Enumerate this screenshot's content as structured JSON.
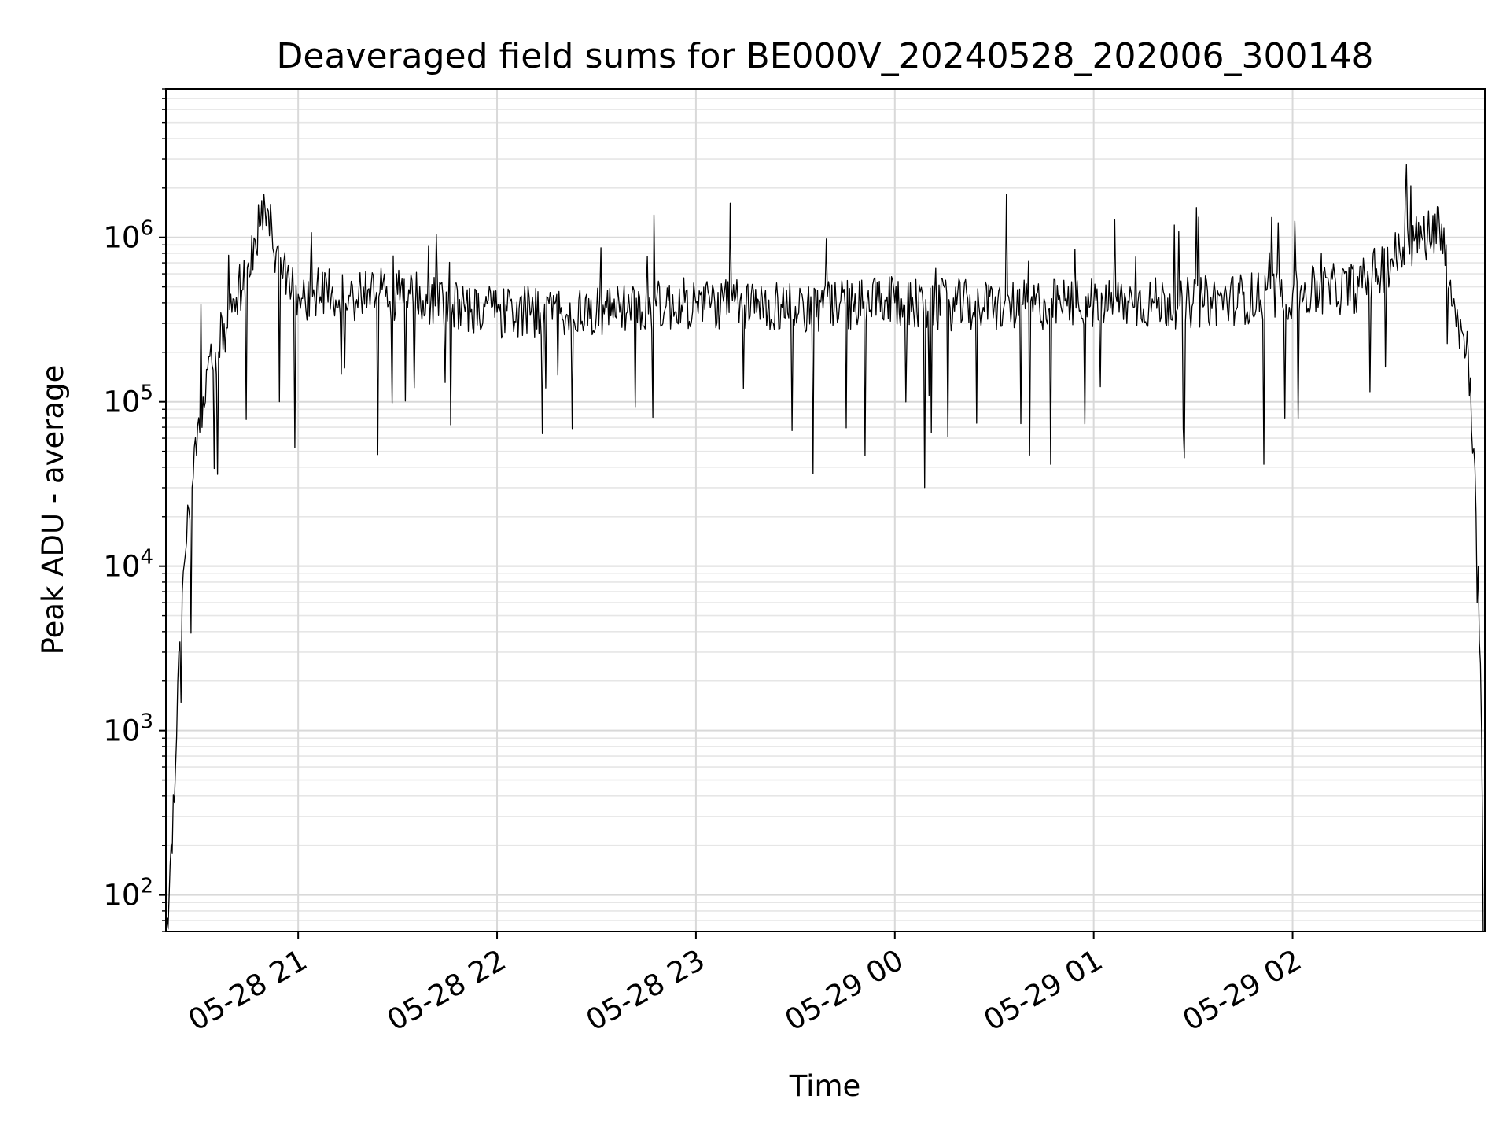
{
  "chart_data": {
    "type": "line",
    "title": "Deaveraged field sums for BE000V_20240528_202006_300148",
    "xlabel": "Time",
    "ylabel": "Peak ADU - average",
    "y_scale": "log",
    "ylim": [
      60,
      8000000
    ],
    "xlim": [
      "2024-05-28 20:20:06",
      "2024-05-29 02:58:00"
    ],
    "x_ticks": [
      "05-28 21",
      "05-28 22",
      "05-28 23",
      "05-29 00",
      "05-29 01",
      "05-29 02"
    ],
    "y_ticks": [
      {
        "base": "10",
        "exp": "2"
      },
      {
        "base": "10",
        "exp": "3"
      },
      {
        "base": "10",
        "exp": "4"
      },
      {
        "base": "10",
        "exp": "5"
      },
      {
        "base": "10",
        "exp": "6"
      }
    ],
    "grid": true,
    "series": [
      {
        "color": "#000000",
        "x": [
          "2024-05-28 20:20:06",
          "2024-05-28 20:22:00",
          "2024-05-28 20:24:00",
          "2024-05-28 20:26:00",
          "2024-05-28 20:28:00",
          "2024-05-28 20:30:00",
          "2024-05-28 20:35:00",
          "2024-05-28 20:40:00",
          "2024-05-28 20:45:00",
          "2024-05-28 20:50:00",
          "2024-05-28 20:55:00",
          "2024-05-28 21:00:00",
          "2024-05-28 21:30:00",
          "2024-05-28 22:00:00",
          "2024-05-28 22:30:00",
          "2024-05-28 23:00:00",
          "2024-05-28 23:30:00",
          "2024-05-29 00:00:00",
          "2024-05-29 00:30:00",
          "2024-05-29 01:00:00",
          "2024-05-29 01:30:00",
          "2024-05-29 02:00:00",
          "2024-05-29 02:20:00",
          "2024-05-29 02:35:00",
          "2024-05-29 02:45:00",
          "2024-05-29 02:50:00",
          "2024-05-29 02:53:00",
          "2024-05-29 02:55:00",
          "2024-05-29 02:56:00",
          "2024-05-29 02:57:00",
          "2024-05-29 02:57:30"
        ],
        "y": [
          60,
          180,
          3000,
          12000,
          30000,
          80000,
          200000,
          350000,
          700000,
          1500000,
          600000,
          450000,
          450000,
          350000,
          350000,
          400000,
          380000,
          400000,
          380000,
          400000,
          400000,
          450000,
          500000,
          900000,
          1200000,
          300000,
          200000,
          40000,
          10000,
          1000,
          60
        ]
      }
    ]
  }
}
